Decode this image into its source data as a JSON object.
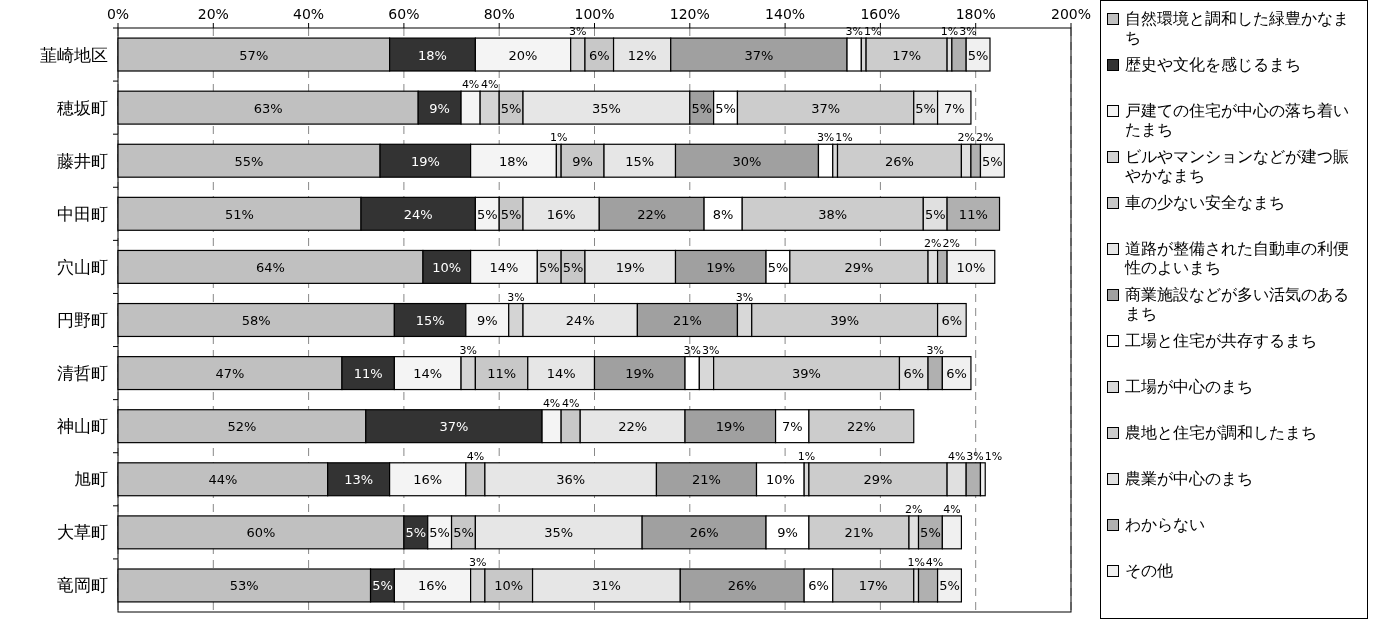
{
  "chart_data": {
    "type": "bar",
    "orientation": "horizontal",
    "stacked": true,
    "categories": [
      "韮崎地区",
      "穂坂町",
      "藤井町",
      "中田町",
      "穴山町",
      "円野町",
      "清哲町",
      "神山町",
      "旭町",
      "大草町",
      "竜岡町"
    ],
    "xlim": [
      0,
      200
    ],
    "xticks": [
      {
        "value": 0,
        "label": "0%"
      },
      {
        "value": 20,
        "label": "20%"
      },
      {
        "value": 40,
        "label": "40%"
      },
      {
        "value": 60,
        "label": "60%"
      },
      {
        "value": 80,
        "label": "80%"
      },
      {
        "value": 100,
        "label": "100%"
      },
      {
        "value": 120,
        "label": "120%"
      },
      {
        "value": 140,
        "label": "140%"
      },
      {
        "value": 160,
        "label": "160%"
      },
      {
        "value": 180,
        "label": "180%"
      },
      {
        "value": 200,
        "label": "200%"
      }
    ],
    "grid": "x",
    "legend": "right",
    "series": [
      {
        "name": "自然環境と調和した緑豊かなまち",
        "color": "#c0c0c0",
        "values": [
          57,
          63,
          55,
          51,
          64,
          58,
          47,
          52,
          44,
          60,
          53
        ],
        "value_labels": [
          "57%",
          "63%",
          "55%",
          "51%",
          "64%",
          "58%",
          "47%",
          "52%",
          "44%",
          "60%",
          "53%"
        ]
      },
      {
        "name": "歴史や文化を感じるまち",
        "color": "#333333",
        "values": [
          18,
          9,
          19,
          24,
          10,
          15,
          11,
          37,
          13,
          5,
          5
        ],
        "value_labels": [
          "18%",
          "9%",
          "19%",
          "24%",
          "10%",
          "15%",
          "11%",
          "37%",
          "13%",
          "5%",
          "5%"
        ]
      },
      {
        "name": "戸建ての住宅が中心の落ち着いたまち",
        "color": "#f4f4f4",
        "values": [
          20,
          4,
          18,
          5,
          14,
          9,
          14,
          4,
          16,
          5,
          16
        ],
        "value_labels": [
          "20%",
          "4%",
          "18%",
          "5%",
          "14%",
          "9%",
          "14%",
          "4%",
          "16%",
          "5%",
          "16%"
        ]
      },
      {
        "name": "ビルやマンションなどが建つ賑やかなまち",
        "color": "#d4d4d4",
        "values": [
          3,
          4,
          1,
          null,
          5,
          3,
          3,
          null,
          null,
          null,
          3
        ],
        "value_labels": [
          "3%",
          "4%",
          "1%",
          null,
          "5%",
          "3%",
          "3%",
          null,
          null,
          null,
          "3%"
        ]
      },
      {
        "name": "車の少ない安全なまち",
        "color": "#c8c8c8",
        "values": [
          6,
          5,
          9,
          5,
          5,
          null,
          11,
          4,
          4,
          5,
          10
        ],
        "value_labels": [
          "6%",
          "5%",
          "9%",
          "5%",
          "5%",
          null,
          "11%",
          "4%",
          "4%",
          "5%",
          "10%"
        ]
      },
      {
        "name": "道路が整備された自動車の利便性のよいまち",
        "color": "#e6e6e6",
        "values": [
          12,
          35,
          15,
          16,
          19,
          24,
          14,
          22,
          36,
          35,
          31
        ],
        "value_labels": [
          "12%",
          "35%",
          "15%",
          "16%",
          "19%",
          "24%",
          "14%",
          "22%",
          "36%",
          "35%",
          "31%"
        ]
      },
      {
        "name": "商業施設などが多い活気のあるまち",
        "color": "#a0a0a0",
        "values": [
          37,
          5,
          30,
          22,
          19,
          21,
          19,
          19,
          21,
          26,
          26
        ],
        "value_labels": [
          "37%",
          "5%",
          "30%",
          "22%",
          "19%",
          "21%",
          "19%",
          "19%",
          "21%",
          "26%",
          "26%"
        ]
      },
      {
        "name": "工場と住宅が共存するまち",
        "color": "#ffffff",
        "values": [
          3,
          5,
          3,
          8,
          5,
          null,
          3,
          7,
          10,
          9,
          6
        ],
        "value_labels": [
          "3%",
          "5%",
          "3%",
          "8%",
          "5%",
          null,
          "3%",
          "7%",
          "10%",
          "9%",
          "6%"
        ]
      },
      {
        "name": "工場が中心のまち",
        "color": "#d8d8d8",
        "values": [
          1,
          null,
          1,
          null,
          null,
          3,
          3,
          null,
          1,
          null,
          null
        ],
        "value_labels": [
          "1%",
          null,
          "1%",
          null,
          null,
          "3%",
          "3%",
          null,
          "1%",
          null,
          null
        ]
      },
      {
        "name": "農地と住宅が調和したまち",
        "color": "#cccccc",
        "values": [
          17,
          37,
          26,
          38,
          29,
          39,
          39,
          22,
          29,
          21,
          17
        ],
        "value_labels": [
          "17%",
          "37%",
          "26%",
          "38%",
          "29%",
          "39%",
          "39%",
          "22%",
          "29%",
          "21%",
          "17%"
        ]
      },
      {
        "name": "農業が中心のまち",
        "color": "#e0e0e0",
        "values": [
          1,
          5,
          2,
          5,
          2,
          6,
          6,
          null,
          4,
          2,
          1
        ],
        "value_labels": [
          "1%",
          "5%",
          "2%",
          "5%",
          "2%",
          "6%",
          "6%",
          null,
          "4%",
          "2%",
          "1%"
        ]
      },
      {
        "name": "わからない",
        "color": "#b0b0b0",
        "values": [
          3,
          null,
          2,
          11,
          2,
          null,
          3,
          null,
          3,
          5,
          4
        ],
        "value_labels": [
          "3%",
          null,
          "2%",
          "11%",
          "2%",
          null,
          "3%",
          null,
          "3%",
          "5%",
          "4%"
        ]
      },
      {
        "name": "その他",
        "color": "#f0f0f0",
        "values": [
          5,
          7,
          5,
          null,
          10,
          null,
          6,
          null,
          1,
          4,
          5
        ],
        "value_labels": [
          "5%",
          "7%",
          "5%",
          null,
          "10%",
          null,
          "6%",
          null,
          "1%",
          "4%",
          "5%"
        ]
      }
    ]
  }
}
